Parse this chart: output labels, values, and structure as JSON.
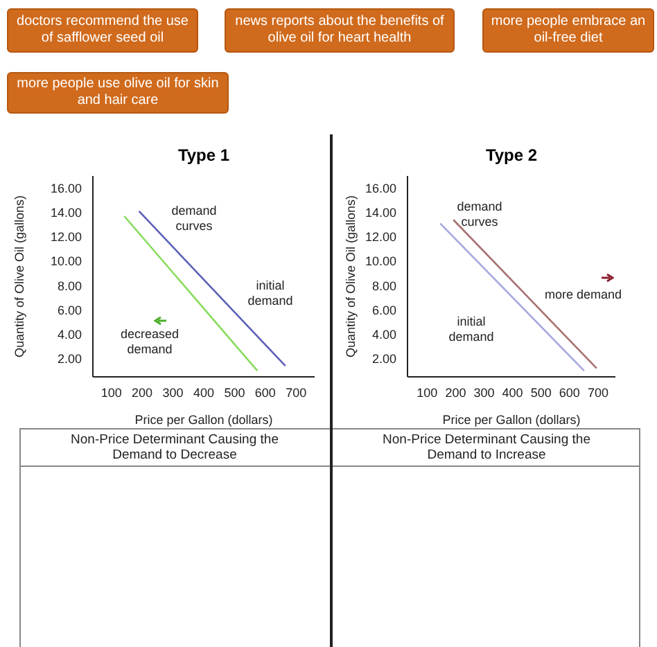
{
  "chart_data": [
    {
      "type": "line",
      "title": "Type 1",
      "xlabel": "Price per Gallon (dollars)",
      "ylabel": "Quantity of Olive Oil (gallons)",
      "xlim": [
        40,
        760
      ],
      "ylim": [
        0.5,
        17
      ],
      "xticks": [
        100,
        200,
        300,
        400,
        500,
        600,
        700
      ],
      "yticks": [
        {
          "value": 2,
          "label": "2.00"
        },
        {
          "value": 4,
          "label": "4.00"
        },
        {
          "value": 6,
          "label": "6.00"
        },
        {
          "value": 8,
          "label": "8.00"
        },
        {
          "value": 10,
          "label": "10.00"
        },
        {
          "value": 12,
          "label": "12.00"
        },
        {
          "value": 14,
          "label": "14.00"
        },
        {
          "value": 16,
          "label": "16.00"
        }
      ],
      "grid": false,
      "legend": false,
      "series": [
        {
          "color": "#5c5fb8",
          "x": [
            190,
            665
          ],
          "values": [
            14.1,
            1.4
          ]
        },
        {
          "color": "#86dc5c",
          "x": [
            142,
            574
          ],
          "values": [
            13.7,
            1.0
          ]
        }
      ],
      "annotations": [
        "doctors recommend the use of safflower seed oil",
        "news reports about the benefits of olive oil for heart health",
        "more people embrace an oil-free diet",
        "more people use olive oil for skin and hair care",
        "demand curves",
        "initial demand",
        "decreased demand",
        "Non-Price Determinant Causing the Demand to Decrease"
      ]
    },
    {
      "type": "line",
      "title": "Type 2",
      "xlabel": "Price per Gallon (dollars)",
      "ylabel": "Quantity of Olive Oil (gallons)",
      "xlim": [
        31,
        761
      ],
      "ylim": [
        0.5,
        17
      ],
      "xticks": [
        100,
        200,
        300,
        400,
        500,
        600,
        700
      ],
      "yticks": [
        {
          "value": 2,
          "label": "2.00"
        },
        {
          "value": 4,
          "label": "4.00"
        },
        {
          "value": 6,
          "label": "6.00"
        },
        {
          "value": 8,
          "label": "8.00"
        },
        {
          "value": 10,
          "label": "10.00"
        },
        {
          "value": 12,
          "label": "12.00"
        },
        {
          "value": 14,
          "label": "14.00"
        },
        {
          "value": 16,
          "label": "16.00"
        }
      ],
      "grid": false,
      "legend": false,
      "series": [
        {
          "color": "#a4a8e0",
          "x": [
            146,
            651
          ],
          "values": [
            13.1,
            1.0
          ]
        },
        {
          "color": "#a87070",
          "x": [
            192,
            695
          ],
          "values": [
            13.4,
            1.2
          ]
        }
      ],
      "annotations": [
        "demand curves",
        "more demand",
        "initial demand",
        "Non-Price Determinant Causing the Demand to Increase"
      ]
    }
  ]
}
